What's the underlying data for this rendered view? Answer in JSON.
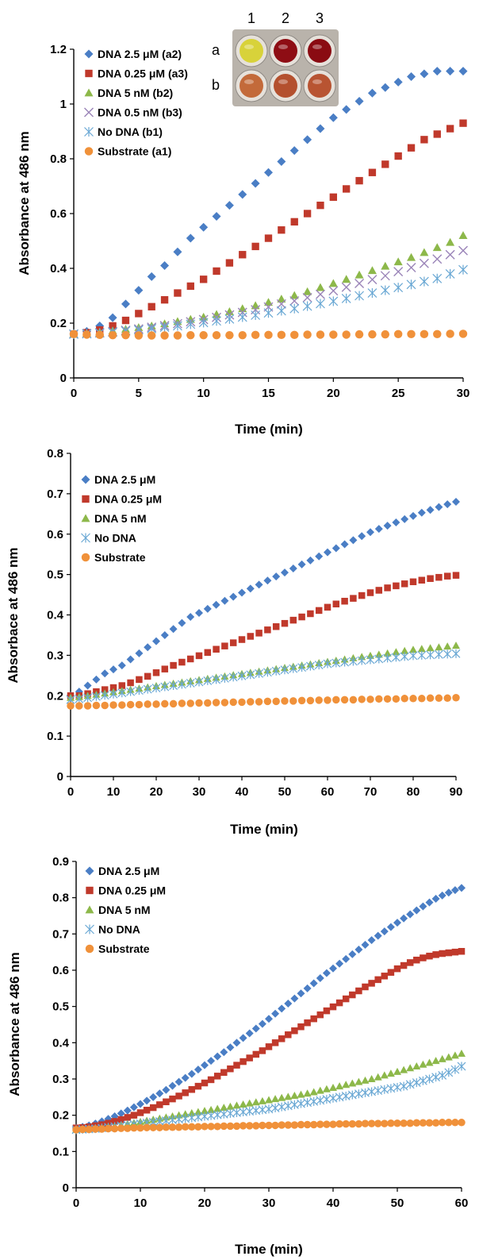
{
  "colors": {
    "dna_high": "#4a7ec5",
    "dna_mid": "#c0392b",
    "dna_low": "#8db84a",
    "dna_tiny": "#9a84b8",
    "no_dna": "#6aa8d4",
    "substrate": "#f0913a"
  },
  "inset_photo": {
    "column_labels": [
      "1",
      "2",
      "3"
    ],
    "row_labels": [
      "a",
      "b"
    ],
    "wells": [
      [
        "#d8d23a",
        "#8e0d14",
        "#8a0b12"
      ],
      [
        "#c36a3a",
        "#b4502e",
        "#b85432"
      ]
    ]
  },
  "chart_data": [
    {
      "type": "scatter",
      "xlabel": "Time (min)",
      "ylabel": "Absorbance at 486 nm",
      "xlim": [
        0,
        30
      ],
      "ylim": [
        0,
        1.2
      ],
      "xticks": [
        0,
        5,
        10,
        15,
        20,
        25,
        30
      ],
      "yticks": [
        0,
        0.2,
        0.4,
        0.6,
        0.8,
        1,
        1.2
      ],
      "ytick_labels": [
        "0",
        "0.2",
        "0.4",
        "0.6",
        "0.8",
        "1",
        "1.2"
      ],
      "legend_position": "top-left",
      "x_step": 1,
      "series": [
        {
          "name": "DNA 2.5 μM (a2)",
          "marker": "diamond",
          "color_key": "dna_high",
          "values": [
            0.16,
            0.17,
            0.19,
            0.22,
            0.27,
            0.32,
            0.37,
            0.41,
            0.46,
            0.51,
            0.55,
            0.59,
            0.63,
            0.67,
            0.71,
            0.75,
            0.79,
            0.83,
            0.87,
            0.91,
            0.95,
            0.98,
            1.01,
            1.04,
            1.06,
            1.08,
            1.1,
            1.11,
            1.12,
            1.12,
            1.12
          ]
        },
        {
          "name": "DNA 0.25 μM (a3)",
          "marker": "square",
          "color_key": "dna_mid",
          "values": [
            0.16,
            0.165,
            0.175,
            0.19,
            0.21,
            0.235,
            0.26,
            0.285,
            0.31,
            0.335,
            0.36,
            0.39,
            0.42,
            0.45,
            0.48,
            0.51,
            0.54,
            0.57,
            0.6,
            0.63,
            0.66,
            0.69,
            0.72,
            0.75,
            0.78,
            0.81,
            0.84,
            0.87,
            0.89,
            0.91,
            0.93
          ]
        },
        {
          "name": "DNA 5 nM (b2)",
          "marker": "triangle",
          "color_key": "dna_low",
          "values": [
            0.16,
            0.163,
            0.167,
            0.172,
            0.178,
            0.184,
            0.19,
            0.198,
            0.206,
            0.214,
            0.222,
            0.232,
            0.242,
            0.253,
            0.264,
            0.276,
            0.288,
            0.301,
            0.315,
            0.33,
            0.345,
            0.36,
            0.376,
            0.392,
            0.408,
            0.424,
            0.44,
            0.458,
            0.476,
            0.495,
            0.52
          ]
        },
        {
          "name": "DNA 0.5 nM (b3)",
          "marker": "x",
          "color_key": "dna_tiny",
          "values": [
            0.16,
            0.162,
            0.165,
            0.169,
            0.174,
            0.179,
            0.185,
            0.191,
            0.198,
            0.205,
            0.213,
            0.221,
            0.23,
            0.239,
            0.249,
            0.259,
            0.27,
            0.281,
            0.293,
            0.305,
            0.318,
            0.331,
            0.345,
            0.359,
            0.373,
            0.388,
            0.403,
            0.418,
            0.434,
            0.45,
            0.465
          ]
        },
        {
          "name": "No DNA (b1)",
          "marker": "asterisk",
          "color_key": "no_dna",
          "values": [
            0.16,
            0.161,
            0.164,
            0.167,
            0.171,
            0.175,
            0.18,
            0.185,
            0.19,
            0.196,
            0.202,
            0.208,
            0.215,
            0.222,
            0.229,
            0.237,
            0.245,
            0.253,
            0.262,
            0.271,
            0.28,
            0.29,
            0.3,
            0.31,
            0.32,
            0.33,
            0.341,
            0.352,
            0.363,
            0.38,
            0.395
          ]
        },
        {
          "name": "Substrate (a1)",
          "marker": "circle",
          "color_key": "substrate",
          "values": [
            0.16,
            0.158,
            0.157,
            0.156,
            0.156,
            0.155,
            0.155,
            0.155,
            0.155,
            0.156,
            0.156,
            0.156,
            0.156,
            0.156,
            0.157,
            0.157,
            0.157,
            0.157,
            0.158,
            0.158,
            0.158,
            0.158,
            0.159,
            0.159,
            0.159,
            0.16,
            0.16,
            0.16,
            0.16,
            0.161,
            0.161
          ]
        }
      ]
    },
    {
      "type": "scatter",
      "xlabel": "Time (min)",
      "ylabel": "Absorbace at 486 nm",
      "xlim": [
        0,
        90
      ],
      "ylim": [
        0,
        0.8
      ],
      "xticks": [
        0,
        10,
        20,
        30,
        40,
        50,
        60,
        70,
        80,
        90
      ],
      "yticks": [
        0,
        0.1,
        0.2,
        0.3,
        0.4,
        0.5,
        0.6,
        0.7,
        0.8
      ],
      "ytick_labels": [
        "0",
        "0.1",
        "0.2",
        "0.3",
        "0.4",
        "0.5",
        "0.6",
        "0.7",
        "0.8"
      ],
      "legend_position": "top-left",
      "x_step": 2,
      "series": [
        {
          "name": "DNA 2.5 μM",
          "marker": "diamond",
          "color_key": "dna_high",
          "values": [
            0.2,
            0.21,
            0.225,
            0.24,
            0.255,
            0.265,
            0.275,
            0.29,
            0.305,
            0.32,
            0.335,
            0.35,
            0.365,
            0.38,
            0.395,
            0.405,
            0.415,
            0.425,
            0.435,
            0.445,
            0.455,
            0.465,
            0.475,
            0.485,
            0.495,
            0.505,
            0.515,
            0.525,
            0.535,
            0.545,
            0.555,
            0.565,
            0.575,
            0.585,
            0.595,
            0.605,
            0.613,
            0.621,
            0.629,
            0.637,
            0.645,
            0.653,
            0.66,
            0.667,
            0.674,
            0.68
          ]
        },
        {
          "name": "DNA 0.25 μM",
          "marker": "square",
          "color_key": "dna_mid",
          "values": [
            0.2,
            0.2,
            0.205,
            0.21,
            0.215,
            0.22,
            0.225,
            0.232,
            0.24,
            0.248,
            0.257,
            0.266,
            0.275,
            0.283,
            0.291,
            0.299,
            0.307,
            0.315,
            0.323,
            0.331,
            0.339,
            0.347,
            0.355,
            0.363,
            0.371,
            0.379,
            0.387,
            0.395,
            0.403,
            0.411,
            0.419,
            0.427,
            0.434,
            0.441,
            0.448,
            0.455,
            0.461,
            0.467,
            0.472,
            0.477,
            0.482,
            0.486,
            0.49,
            0.493,
            0.496,
            0.498
          ]
        },
        {
          "name": "DNA 5 nM",
          "marker": "triangle",
          "color_key": "dna_low",
          "values": [
            0.195,
            0.197,
            0.2,
            0.203,
            0.206,
            0.209,
            0.212,
            0.215,
            0.218,
            0.221,
            0.224,
            0.227,
            0.23,
            0.233,
            0.236,
            0.239,
            0.242,
            0.245,
            0.248,
            0.251,
            0.254,
            0.257,
            0.26,
            0.263,
            0.266,
            0.269,
            0.272,
            0.275,
            0.278,
            0.281,
            0.284,
            0.287,
            0.29,
            0.293,
            0.296,
            0.299,
            0.302,
            0.305,
            0.308,
            0.311,
            0.314,
            0.316,
            0.318,
            0.32,
            0.322,
            0.324
          ]
        },
        {
          "name": "No DNA",
          "marker": "asterisk",
          "color_key": "no_dna",
          "values": [
            0.19,
            0.192,
            0.195,
            0.198,
            0.201,
            0.204,
            0.207,
            0.21,
            0.213,
            0.216,
            0.219,
            0.222,
            0.225,
            0.228,
            0.231,
            0.234,
            0.237,
            0.24,
            0.243,
            0.246,
            0.249,
            0.252,
            0.255,
            0.258,
            0.261,
            0.264,
            0.267,
            0.27,
            0.273,
            0.276,
            0.279,
            0.281,
            0.283,
            0.285,
            0.287,
            0.289,
            0.291,
            0.293,
            0.295,
            0.297,
            0.299,
            0.3,
            0.301,
            0.302,
            0.303,
            0.304
          ]
        },
        {
          "name": "Substrate",
          "marker": "circle",
          "color_key": "substrate",
          "values": [
            0.175,
            0.175,
            0.175,
            0.176,
            0.176,
            0.177,
            0.177,
            0.178,
            0.178,
            0.179,
            0.179,
            0.18,
            0.18,
            0.181,
            0.181,
            0.182,
            0.182,
            0.183,
            0.183,
            0.184,
            0.184,
            0.185,
            0.185,
            0.186,
            0.186,
            0.187,
            0.187,
            0.188,
            0.188,
            0.189,
            0.189,
            0.19,
            0.19,
            0.19,
            0.191,
            0.191,
            0.192,
            0.192,
            0.192,
            0.193,
            0.193,
            0.193,
            0.194,
            0.194,
            0.194,
            0.195
          ]
        }
      ]
    },
    {
      "type": "scatter",
      "xlabel": "Time (min)",
      "ylabel": "Absorbance at 486 nm",
      "xlim": [
        0,
        60
      ],
      "ylim": [
        0,
        0.9
      ],
      "xticks": [
        0,
        10,
        20,
        30,
        40,
        50,
        60
      ],
      "yticks": [
        0,
        0.1,
        0.2,
        0.3,
        0.4,
        0.5,
        0.6,
        0.7,
        0.8,
        0.9
      ],
      "ytick_labels": [
        "0",
        "0.1",
        "0.2",
        "0.3",
        "0.4",
        "0.5",
        "0.6",
        "0.7",
        "0.8",
        "0.9"
      ],
      "legend_position": "top-left",
      "x_step": 1,
      "series": [
        {
          "name": "DNA 2.5 μM",
          "marker": "diamond",
          "color_key": "dna_high",
          "values": [
            0.165,
            0.168,
            0.172,
            0.177,
            0.183,
            0.19,
            0.197,
            0.205,
            0.213,
            0.222,
            0.231,
            0.24,
            0.25,
            0.26,
            0.27,
            0.281,
            0.292,
            0.303,
            0.314,
            0.326,
            0.338,
            0.35,
            0.362,
            0.374,
            0.387,
            0.4,
            0.413,
            0.426,
            0.439,
            0.452,
            0.466,
            0.48,
            0.494,
            0.508,
            0.522,
            0.536,
            0.55,
            0.564,
            0.578,
            0.592,
            0.605,
            0.618,
            0.631,
            0.644,
            0.657,
            0.67,
            0.683,
            0.695,
            0.707,
            0.719,
            0.731,
            0.743,
            0.754,
            0.765,
            0.776,
            0.787,
            0.797,
            0.806,
            0.814,
            0.821,
            0.827
          ]
        },
        {
          "name": "DNA 0.25 μM",
          "marker": "square",
          "color_key": "dna_mid",
          "values": [
            0.165,
            0.166,
            0.168,
            0.171,
            0.174,
            0.178,
            0.183,
            0.188,
            0.194,
            0.2,
            0.207,
            0.214,
            0.221,
            0.229,
            0.237,
            0.245,
            0.253,
            0.262,
            0.271,
            0.28,
            0.289,
            0.298,
            0.308,
            0.318,
            0.328,
            0.338,
            0.348,
            0.358,
            0.368,
            0.378,
            0.389,
            0.4,
            0.411,
            0.422,
            0.433,
            0.444,
            0.455,
            0.466,
            0.477,
            0.488,
            0.499,
            0.51,
            0.521,
            0.532,
            0.543,
            0.554,
            0.564,
            0.574,
            0.584,
            0.594,
            0.604,
            0.613,
            0.621,
            0.628,
            0.634,
            0.639,
            0.643,
            0.646,
            0.648,
            0.65,
            0.652
          ]
        },
        {
          "name": "DNA 5 nM",
          "marker": "triangle",
          "color_key": "dna_low",
          "values": [
            0.16,
            0.161,
            0.162,
            0.164,
            0.166,
            0.168,
            0.17,
            0.173,
            0.176,
            0.179,
            0.182,
            0.185,
            0.188,
            0.191,
            0.194,
            0.197,
            0.2,
            0.203,
            0.206,
            0.209,
            0.212,
            0.215,
            0.218,
            0.221,
            0.224,
            0.227,
            0.23,
            0.233,
            0.236,
            0.239,
            0.242,
            0.245,
            0.248,
            0.251,
            0.254,
            0.257,
            0.26,
            0.264,
            0.268,
            0.272,
            0.276,
            0.28,
            0.284,
            0.288,
            0.292,
            0.296,
            0.3,
            0.305,
            0.31,
            0.315,
            0.32,
            0.325,
            0.33,
            0.335,
            0.34,
            0.345,
            0.35,
            0.355,
            0.36,
            0.365,
            0.37
          ]
        },
        {
          "name": "No DNA",
          "marker": "asterisk",
          "color_key": "no_dna",
          "values": [
            0.16,
            0.161,
            0.162,
            0.163,
            0.165,
            0.167,
            0.169,
            0.171,
            0.173,
            0.175,
            0.177,
            0.179,
            0.181,
            0.183,
            0.185,
            0.187,
            0.189,
            0.191,
            0.193,
            0.195,
            0.197,
            0.199,
            0.201,
            0.203,
            0.205,
            0.207,
            0.209,
            0.211,
            0.213,
            0.215,
            0.217,
            0.22,
            0.223,
            0.226,
            0.229,
            0.232,
            0.235,
            0.238,
            0.241,
            0.244,
            0.247,
            0.25,
            0.253,
            0.256,
            0.259,
            0.262,
            0.265,
            0.268,
            0.271,
            0.274,
            0.277,
            0.28,
            0.285,
            0.29,
            0.295,
            0.3,
            0.305,
            0.31,
            0.318,
            0.326,
            0.335
          ]
        },
        {
          "name": "Substrate",
          "marker": "circle",
          "color_key": "substrate",
          "values": [
            0.16,
            0.161,
            0.161,
            0.162,
            0.162,
            0.163,
            0.163,
            0.164,
            0.164,
            0.165,
            0.165,
            0.166,
            0.166,
            0.166,
            0.167,
            0.167,
            0.167,
            0.168,
            0.168,
            0.168,
            0.169,
            0.169,
            0.169,
            0.17,
            0.17,
            0.17,
            0.171,
            0.171,
            0.171,
            0.172,
            0.172,
            0.172,
            0.173,
            0.173,
            0.173,
            0.174,
            0.174,
            0.174,
            0.175,
            0.175,
            0.175,
            0.176,
            0.176,
            0.176,
            0.176,
            0.177,
            0.177,
            0.177,
            0.177,
            0.178,
            0.178,
            0.178,
            0.178,
            0.179,
            0.179,
            0.179,
            0.179,
            0.18,
            0.18,
            0.18,
            0.18
          ]
        }
      ]
    }
  ]
}
